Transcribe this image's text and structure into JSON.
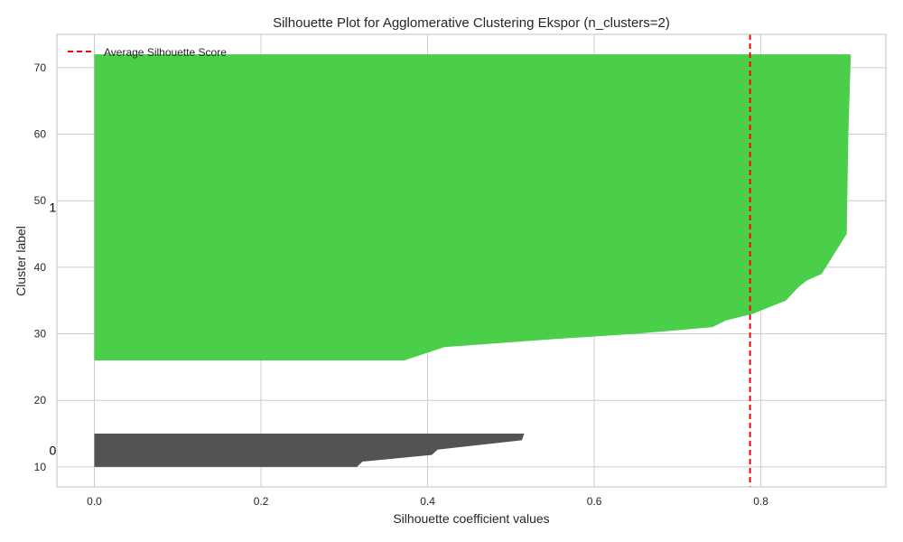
{
  "chart_data": {
    "type": "area",
    "title": "Silhouette Plot for Agglomerative Clustering Ekspor (n_clusters=2)",
    "xlabel": "Silhouette coefficient values",
    "ylabel": "Cluster label",
    "xlim": [
      -0.045,
      0.95
    ],
    "ylim": [
      7,
      75
    ],
    "xticks": [
      0.0,
      0.2,
      0.4,
      0.6,
      0.8
    ],
    "xtick_labels": [
      "0.0",
      "0.2",
      "0.4",
      "0.6",
      "0.8"
    ],
    "yticks": [
      10,
      20,
      30,
      40,
      50,
      60,
      70
    ],
    "ytick_labels": [
      "10",
      "20",
      "30",
      "40",
      "50",
      "60",
      "70"
    ],
    "grid": true,
    "legend_placement": "top-left",
    "average_silhouette_score": 0.787,
    "average_line": {
      "label": "Average Silhouette Score",
      "color": "#ff0000",
      "style": "dashed"
    },
    "clusters": [
      {
        "label": "0",
        "color": "#4d4d4d",
        "y_range": [
          10,
          15
        ],
        "silhouette_profile": [
          [
            10.0,
            0.315
          ],
          [
            10.8,
            0.322
          ],
          [
            11.8,
            0.405
          ],
          [
            12.6,
            0.412
          ],
          [
            14.0,
            0.513
          ],
          [
            15.0,
            0.516
          ]
        ]
      },
      {
        "label": "1",
        "color": "#45cc44",
        "y_range": [
          26,
          72
        ],
        "silhouette_profile": [
          [
            26.0,
            0.372
          ],
          [
            28.0,
            0.42
          ],
          [
            29.2,
            0.55
          ],
          [
            30.0,
            0.65
          ],
          [
            31.0,
            0.742
          ],
          [
            32.0,
            0.758
          ],
          [
            33.0,
            0.79
          ],
          [
            34.0,
            0.81
          ],
          [
            35.0,
            0.83
          ],
          [
            37.0,
            0.845
          ],
          [
            38.0,
            0.855
          ],
          [
            39.0,
            0.873
          ],
          [
            42.0,
            0.888
          ],
          [
            44.0,
            0.898
          ],
          [
            45.0,
            0.903
          ],
          [
            60.0,
            0.905
          ],
          [
            72.0,
            0.908
          ]
        ]
      }
    ]
  }
}
